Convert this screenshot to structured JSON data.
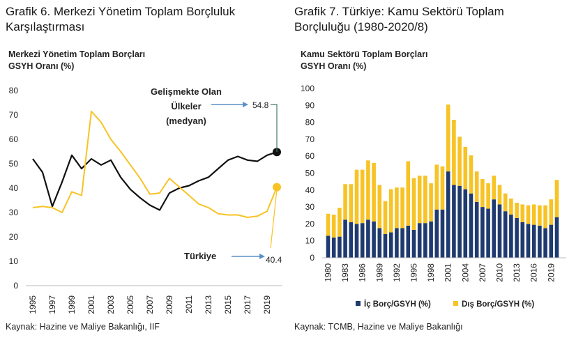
{
  "left": {
    "figure_title_line1": "Grafik 6. Merkezi Yönetim Toplam Borçluluk",
    "figure_title_line2": "Karşılaştırması",
    "chart_title_line1": "Merkezi Yönetim Toplam Borçları",
    "chart_title_line2": "GSYH Oranı (%)",
    "source": "Kaynak: Hazine ve Maliye Bakanlığı, IIF",
    "annotation_dev_line1": "Gelişmekte Olan",
    "annotation_dev_line2": "Ülkeler",
    "annotation_dev_line3": "(medyan)",
    "annotation_dev_value": "54.8",
    "annotation_tr_label": "Türkiye",
    "annotation_tr_value": "40.4"
  },
  "right": {
    "figure_title_line1": "Grafik 7. Türkiye: Kamu Sektörü Toplam",
    "figure_title_line2": "Borçluluğu (1980-2020/8)",
    "chart_title_line1": "Kamu Sektörü Toplam Borçları",
    "chart_title_line2": "GSYH Oranı (%)",
    "source": "Kaynak: TCMB, Hazine ve Maliye Bakanlığı"
  },
  "colors": {
    "black_series": "#111111",
    "yellow_series": "#f7c325",
    "navy": "#1f3a6e",
    "annotation_line": "#5b8fc9",
    "dev_connector": "#3f7a6e"
  },
  "chart_data": [
    {
      "type": "line",
      "x": [
        1995,
        1996,
        1997,
        1998,
        1999,
        2000,
        2001,
        2002,
        2003,
        2004,
        2005,
        2006,
        2007,
        2008,
        2009,
        2010,
        2011,
        2012,
        2013,
        2014,
        2015,
        2016,
        2017,
        2018,
        2019,
        2020
      ],
      "x_tick_labels": [
        "1995",
        "1997",
        "1999",
        "2001",
        "2003",
        "2005",
        "2007",
        "2009",
        "2011",
        "2013",
        "2015",
        "2017",
        "2019"
      ],
      "y_tick_labels": [
        "0",
        "10",
        "20",
        "30",
        "40",
        "50",
        "60",
        "70",
        "80"
      ],
      "ylim": [
        0,
        80
      ],
      "series": [
        {
          "values": [
            52,
            46.5,
            32.5,
            42.5,
            53.5,
            48,
            52,
            49.5,
            51.5,
            44.5,
            39.5,
            36,
            33,
            31,
            38,
            40,
            41,
            43,
            44.5,
            48,
            51.5,
            53,
            51.5,
            51,
            53.5,
            54.8
          ]
        },
        {
          "values": [
            32,
            32.5,
            32,
            30,
            38.5,
            37,
            71.5,
            67,
            60,
            55,
            49.5,
            44,
            37.5,
            38,
            44,
            40.5,
            37,
            33.5,
            32,
            29.5,
            29,
            29,
            28,
            28.5,
            30.5,
            40.4
          ]
        }
      ]
    },
    {
      "type": "bar",
      "stacked": true,
      "categories": [
        1980,
        1981,
        1982,
        1983,
        1984,
        1985,
        1986,
        1987,
        1988,
        1989,
        1990,
        1991,
        1992,
        1993,
        1994,
        1995,
        1996,
        1997,
        1998,
        1999,
        2000,
        2001,
        2002,
        2003,
        2004,
        2005,
        2006,
        2007,
        2008,
        2009,
        2010,
        2011,
        2012,
        2013,
        2014,
        2015,
        2016,
        2017,
        2018,
        2019,
        2020
      ],
      "x_tick_labels": [
        "1980",
        "1983",
        "1986",
        "1989",
        "1992",
        "1995",
        "1998",
        "2001",
        "2004",
        "2007",
        "2010",
        "2013",
        "2016",
        "2019"
      ],
      "y_tick_labels": [
        "0",
        "10",
        "20",
        "30",
        "40",
        "50",
        "60",
        "70",
        "80",
        "90",
        "100"
      ],
      "ylim": [
        0,
        100
      ],
      "series": [
        {
          "name": "İç Borç/GSYH (%)",
          "values": [
            13,
            12,
            12.5,
            22.5,
            21,
            20,
            20.5,
            22.5,
            21.5,
            17.5,
            14,
            15,
            17.5,
            17.5,
            19,
            16.5,
            20.5,
            20.5,
            21.5,
            28.5,
            28.5,
            51,
            43,
            42.5,
            40.5,
            38,
            33,
            30,
            29,
            34.5,
            31.5,
            27.5,
            25.5,
            23.5,
            21,
            20,
            19.5,
            19,
            17.5,
            19.5,
            24
          ]
        },
        {
          "name": "Dış Borç/GSYH (%)",
          "values": [
            13,
            13.5,
            17,
            21,
            22.5,
            32,
            31.5,
            35,
            34.5,
            25.5,
            19.5,
            25.5,
            24,
            24,
            38,
            30.5,
            28,
            28,
            22.5,
            26.5,
            25.5,
            39.5,
            38.5,
            29,
            25,
            22.5,
            18,
            16.5,
            15,
            14,
            11.5,
            10.5,
            9.5,
            9,
            10.5,
            11,
            12,
            12,
            13.5,
            15,
            22
          ]
        }
      ],
      "legend_position": "bottom"
    }
  ]
}
